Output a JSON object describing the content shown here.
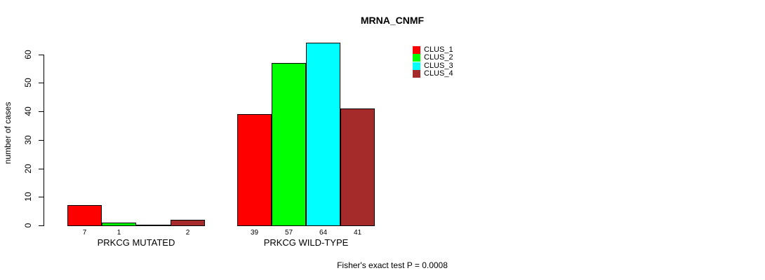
{
  "title": "MRNA_CNMF",
  "footer": "Fisher's exact test P = 0.0008",
  "chart_data": {
    "type": "bar",
    "title": "MRNA_CNMF",
    "xlabel": "",
    "ylabel": "number of cases",
    "ylim": [
      0,
      60
    ],
    "y_ticks": [
      0,
      10,
      20,
      30,
      40,
      50,
      60
    ],
    "grid": false,
    "legend_position": "top-right",
    "categories": [
      "PRKCG MUTATED",
      "PRKCG WILD-TYPE"
    ],
    "series": [
      {
        "name": "CLUS_1",
        "color": "#FF0000",
        "values": [
          7,
          39
        ]
      },
      {
        "name": "CLUS_2",
        "color": "#00FF00",
        "values": [
          1,
          57
        ]
      },
      {
        "name": "CLUS_3",
        "color": "#00FFFF",
        "values": [
          0,
          64
        ]
      },
      {
        "name": "CLUS_4",
        "color": "#A52A2A",
        "values": [
          2,
          41
        ]
      }
    ],
    "bar_value_labels": [
      [
        "7",
        "1",
        "",
        "2"
      ],
      [
        "39",
        "57",
        "64",
        "41"
      ]
    ],
    "annotation": "Fisher's exact test P = 0.0008"
  }
}
